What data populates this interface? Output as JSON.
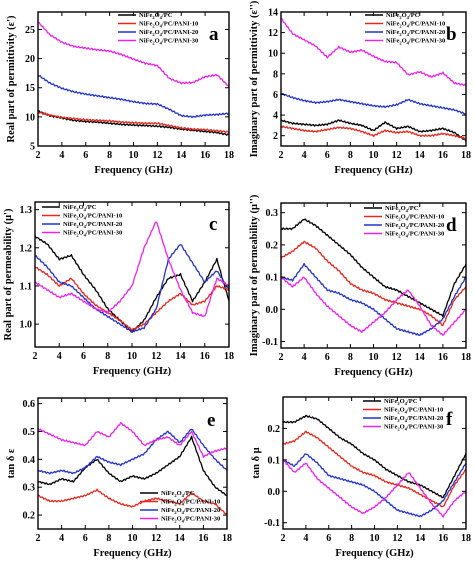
{
  "legend_series": [
    {
      "text": "NiFe2O4/PC",
      "main": "NiFe",
      "s1": "2",
      "mid": "O",
      "s2": "4",
      "rest": "/PC",
      "color": "#000000"
    },
    {
      "text": "NiFe2O4/PC/PANI-10",
      "main": "NiFe",
      "s1": "2",
      "mid": "O",
      "s2": "4",
      "rest": "/PC/PANI-10",
      "color": "#e8281e"
    },
    {
      "text": "NiFe2O4/PC/PANI-20",
      "main": "NiFe",
      "s1": "2",
      "mid": "O",
      "s2": "4",
      "rest": "/PC/PANI-20",
      "color": "#2233cc"
    },
    {
      "text": "NiFe2O4/PC/PANI-30",
      "main": "NiFe",
      "s1": "2",
      "mid": "O",
      "s2": "4",
      "rest": "/PC/PANI-30",
      "color": "#ee22ee"
    }
  ],
  "chart_data": [
    {
      "id": "a",
      "panel_label": "a",
      "type": "line",
      "xlabel": "Frequency (GHz)",
      "ylabel": "Real part of permittivity (ε')",
      "xlim": [
        2,
        18
      ],
      "ylim": [
        5,
        28
      ],
      "xticks": [
        "2",
        "4",
        "6",
        "8",
        "10",
        "12",
        "14",
        "16",
        "18"
      ],
      "yticks": [
        "5",
        "10",
        "15",
        "20",
        "25"
      ],
      "legend_position": "top-right",
      "x": [
        2,
        3,
        4,
        5,
        6,
        7,
        8,
        9,
        10,
        11,
        12,
        13,
        14,
        15,
        16,
        17,
        18
      ],
      "series": [
        {
          "ref": 0,
          "values": [
            11.0,
            10.2,
            9.8,
            9.4,
            9.2,
            9.1,
            8.9,
            8.7,
            8.6,
            8.5,
            8.4,
            8.2,
            7.9,
            7.7,
            7.5,
            7.3,
            6.9
          ]
        },
        {
          "ref": 1,
          "values": [
            10.8,
            10.3,
            9.9,
            9.7,
            9.5,
            9.4,
            9.3,
            9.1,
            9.0,
            8.9,
            8.9,
            8.5,
            8.1,
            7.9,
            7.8,
            7.6,
            7.4
          ]
        },
        {
          "ref": 2,
          "values": [
            17.2,
            15.8,
            14.9,
            14.3,
            13.9,
            13.6,
            13.3,
            13.0,
            12.6,
            12.3,
            12.2,
            11.3,
            10.2,
            10.0,
            10.3,
            10.4,
            10.6
          ]
        },
        {
          "ref": 3,
          "values": [
            26.3,
            24.1,
            22.8,
            22.1,
            21.8,
            21.5,
            21.3,
            20.7,
            19.9,
            19.2,
            18.8,
            16.6,
            15.8,
            15.9,
            16.9,
            17.2,
            15.2
          ]
        }
      ]
    },
    {
      "id": "b",
      "panel_label": "b",
      "type": "line",
      "xlabel": "Frequency (GHz)",
      "ylabel": "Imaginary part of permittivity (ε'')",
      "xlim": [
        2,
        18
      ],
      "ylim": [
        1,
        14
      ],
      "xticks": [
        "2",
        "4",
        "6",
        "8",
        "10",
        "12",
        "14",
        "16",
        "18"
      ],
      "yticks": [
        "2",
        "4",
        "6",
        "8",
        "10",
        "12",
        "14"
      ],
      "legend_position": "top-right",
      "x": [
        2,
        3,
        4,
        5,
        6,
        7,
        8,
        9,
        10,
        11,
        12,
        13,
        14,
        15,
        16,
        17,
        18
      ],
      "series": [
        {
          "ref": 0,
          "values": [
            3.5,
            3.2,
            3.1,
            3.0,
            3.1,
            3.5,
            3.2,
            3.0,
            2.5,
            3.3,
            2.7,
            2.9,
            2.4,
            2.5,
            2.7,
            2.3,
            1.5
          ]
        },
        {
          "ref": 1,
          "values": [
            2.9,
            2.7,
            2.5,
            2.4,
            2.6,
            2.8,
            2.7,
            2.4,
            2.0,
            2.5,
            2.3,
            2.4,
            2.0,
            2.0,
            2.2,
            2.0,
            1.7
          ]
        },
        {
          "ref": 2,
          "values": [
            6.1,
            5.7,
            5.4,
            5.2,
            5.3,
            5.5,
            5.3,
            5.1,
            4.9,
            4.8,
            5.0,
            5.5,
            5.1,
            4.9,
            4.7,
            4.5,
            4.1
          ]
        },
        {
          "ref": 3,
          "values": [
            13.4,
            11.9,
            11.3,
            10.7,
            9.6,
            10.6,
            10.1,
            10.3,
            9.7,
            9.2,
            9.1,
            7.9,
            8.2,
            7.7,
            8.1,
            7.1,
            6.9
          ]
        }
      ]
    },
    {
      "id": "c",
      "panel_label": "c",
      "type": "line",
      "xlabel": "Frequency (GHz)",
      "ylabel": "Real part of permeability (μ')",
      "xlim": [
        2,
        18
      ],
      "ylim": [
        0.94,
        1.32
      ],
      "xticks": [
        "2",
        "4",
        "6",
        "8",
        "10",
        "12",
        "14",
        "16",
        "18"
      ],
      "yticks": [
        "1.0",
        "1.1",
        "1.2",
        "1.3"
      ],
      "legend_position": "top-left",
      "x": [
        2,
        3,
        4,
        5,
        6,
        7,
        8,
        9,
        10,
        11,
        12,
        13,
        14,
        15,
        16,
        17,
        18
      ],
      "series": [
        {
          "ref": 0,
          "values": [
            1.23,
            1.21,
            1.17,
            1.18,
            1.13,
            1.09,
            1.04,
            1.01,
            0.98,
            1.01,
            1.07,
            1.12,
            1.13,
            1.06,
            1.11,
            1.17,
            1.06
          ]
        },
        {
          "ref": 1,
          "values": [
            1.15,
            1.13,
            1.1,
            1.12,
            1.08,
            1.05,
            1.03,
            1.01,
            0.985,
            1.0,
            1.03,
            1.06,
            1.08,
            1.05,
            1.06,
            1.1,
            1.09
          ]
        },
        {
          "ref": 2,
          "values": [
            1.18,
            1.15,
            1.11,
            1.1,
            1.07,
            1.04,
            1.02,
            1.0,
            0.98,
            0.99,
            1.04,
            1.17,
            1.21,
            1.16,
            1.11,
            1.14,
            1.09
          ]
        },
        {
          "ref": 3,
          "values": [
            1.11,
            1.09,
            1.07,
            1.08,
            1.06,
            1.04,
            1.03,
            1.06,
            1.1,
            1.2,
            1.27,
            1.17,
            1.09,
            1.03,
            1.02,
            1.12,
            1.1
          ]
        }
      ]
    },
    {
      "id": "d",
      "panel_label": "d",
      "type": "line",
      "xlabel": "Frequency (GHz)",
      "ylabel": "Imaginary part of permeability (μ'')",
      "xlim": [
        2,
        18
      ],
      "ylim": [
        -0.12,
        0.33
      ],
      "xticks": [
        "2",
        "4",
        "6",
        "8",
        "10",
        "12",
        "14",
        "16",
        "18"
      ],
      "yticks": [
        "-0.1",
        "0.0",
        "0.1",
        "0.2",
        "0.3"
      ],
      "legend_position": "top-right",
      "x": [
        2,
        3,
        4,
        5,
        6,
        7,
        8,
        9,
        10,
        11,
        12,
        13,
        14,
        15,
        16,
        17,
        18
      ],
      "series": [
        {
          "ref": 0,
          "values": [
            0.25,
            0.25,
            0.28,
            0.26,
            0.23,
            0.2,
            0.17,
            0.13,
            0.1,
            0.07,
            0.06,
            0.04,
            0.02,
            0.0,
            -0.02,
            0.08,
            0.14
          ]
        },
        {
          "ref": 1,
          "values": [
            0.16,
            0.18,
            0.21,
            0.19,
            0.15,
            0.12,
            0.08,
            0.06,
            0.05,
            0.03,
            0.02,
            0.01,
            0.0,
            -0.02,
            -0.05,
            0.03,
            0.07
          ]
        },
        {
          "ref": 2,
          "values": [
            0.1,
            0.09,
            0.14,
            0.1,
            0.06,
            0.05,
            0.03,
            0.02,
            0.0,
            -0.03,
            -0.06,
            -0.07,
            -0.08,
            -0.06,
            -0.03,
            0.04,
            0.1
          ]
        },
        {
          "ref": 3,
          "values": [
            0.1,
            0.07,
            0.1,
            0.05,
            0.01,
            -0.02,
            -0.05,
            -0.07,
            -0.04,
            -0.01,
            0.03,
            0.06,
            0.01,
            -0.05,
            -0.08,
            -0.04,
            0.0
          ]
        }
      ]
    },
    {
      "id": "e",
      "panel_label": "e",
      "type": "line",
      "xlabel": "Frequency (GHz)",
      "ylabel": "tan δ ε",
      "xlim": [
        2,
        18
      ],
      "ylim": [
        0.15,
        0.62
      ],
      "xticks": [
        "2",
        "4",
        "6",
        "8",
        "10",
        "12",
        "14",
        "16",
        "18"
      ],
      "yticks": [
        "0.2",
        "0.3",
        "0.4",
        "0.5",
        "0.6"
      ],
      "legend_position": "bottom-right",
      "x": [
        2,
        3,
        4,
        5,
        6,
        7,
        8,
        9,
        10,
        11,
        12,
        13,
        14,
        15,
        16,
        17,
        18
      ],
      "series": [
        {
          "ref": 0,
          "values": [
            0.32,
            0.31,
            0.33,
            0.32,
            0.37,
            0.4,
            0.35,
            0.32,
            0.34,
            0.33,
            0.35,
            0.38,
            0.41,
            0.48,
            0.36,
            0.3,
            0.27
          ]
        },
        {
          "ref": 1,
          "values": [
            0.27,
            0.25,
            0.25,
            0.26,
            0.27,
            0.29,
            0.26,
            0.24,
            0.23,
            0.25,
            0.26,
            0.25,
            0.24,
            0.28,
            0.25,
            0.24,
            0.2
          ]
        },
        {
          "ref": 2,
          "values": [
            0.36,
            0.35,
            0.36,
            0.35,
            0.37,
            0.41,
            0.39,
            0.38,
            0.4,
            0.42,
            0.47,
            0.5,
            0.46,
            0.51,
            0.45,
            0.4,
            0.36
          ]
        },
        {
          "ref": 3,
          "values": [
            0.51,
            0.49,
            0.47,
            0.46,
            0.45,
            0.5,
            0.48,
            0.53,
            0.5,
            0.45,
            0.47,
            0.48,
            0.45,
            0.5,
            0.41,
            0.43,
            0.44
          ]
        }
      ]
    },
    {
      "id": "f",
      "panel_label": "f",
      "type": "line",
      "xlabel": "Frequency (GHz)",
      "ylabel": "tan δ μ",
      "xlim": [
        2,
        18
      ],
      "ylim": [
        -0.12,
        0.3
      ],
      "xticks": [
        "2",
        "4",
        "6",
        "8",
        "10",
        "12",
        "14",
        "16",
        "18"
      ],
      "yticks": [
        "-0.1",
        "0.0",
        "0.1",
        "0.2"
      ],
      "legend_position": "top-right",
      "x": [
        2,
        3,
        4,
        5,
        6,
        7,
        8,
        9,
        10,
        11,
        12,
        13,
        14,
        15,
        16,
        17,
        18
      ],
      "series": [
        {
          "ref": 0,
          "values": [
            0.22,
            0.22,
            0.24,
            0.23,
            0.2,
            0.17,
            0.15,
            0.12,
            0.1,
            0.07,
            0.05,
            0.03,
            0.02,
            0.0,
            -0.02,
            0.05,
            0.12
          ]
        },
        {
          "ref": 1,
          "values": [
            0.15,
            0.16,
            0.19,
            0.17,
            0.14,
            0.11,
            0.08,
            0.06,
            0.05,
            0.03,
            0.02,
            0.01,
            -0.01,
            -0.03,
            -0.05,
            0.02,
            0.07
          ]
        },
        {
          "ref": 2,
          "values": [
            0.1,
            0.08,
            0.12,
            0.09,
            0.05,
            0.04,
            0.03,
            0.02,
            0.0,
            -0.03,
            -0.06,
            -0.07,
            -0.08,
            -0.06,
            -0.03,
            0.03,
            0.09
          ]
        },
        {
          "ref": 3,
          "values": [
            0.1,
            0.06,
            0.09,
            0.04,
            0.01,
            -0.02,
            -0.05,
            -0.07,
            -0.05,
            -0.02,
            0.02,
            0.06,
            0.01,
            -0.04,
            -0.08,
            -0.03,
            0.0
          ]
        }
      ]
    }
  ]
}
